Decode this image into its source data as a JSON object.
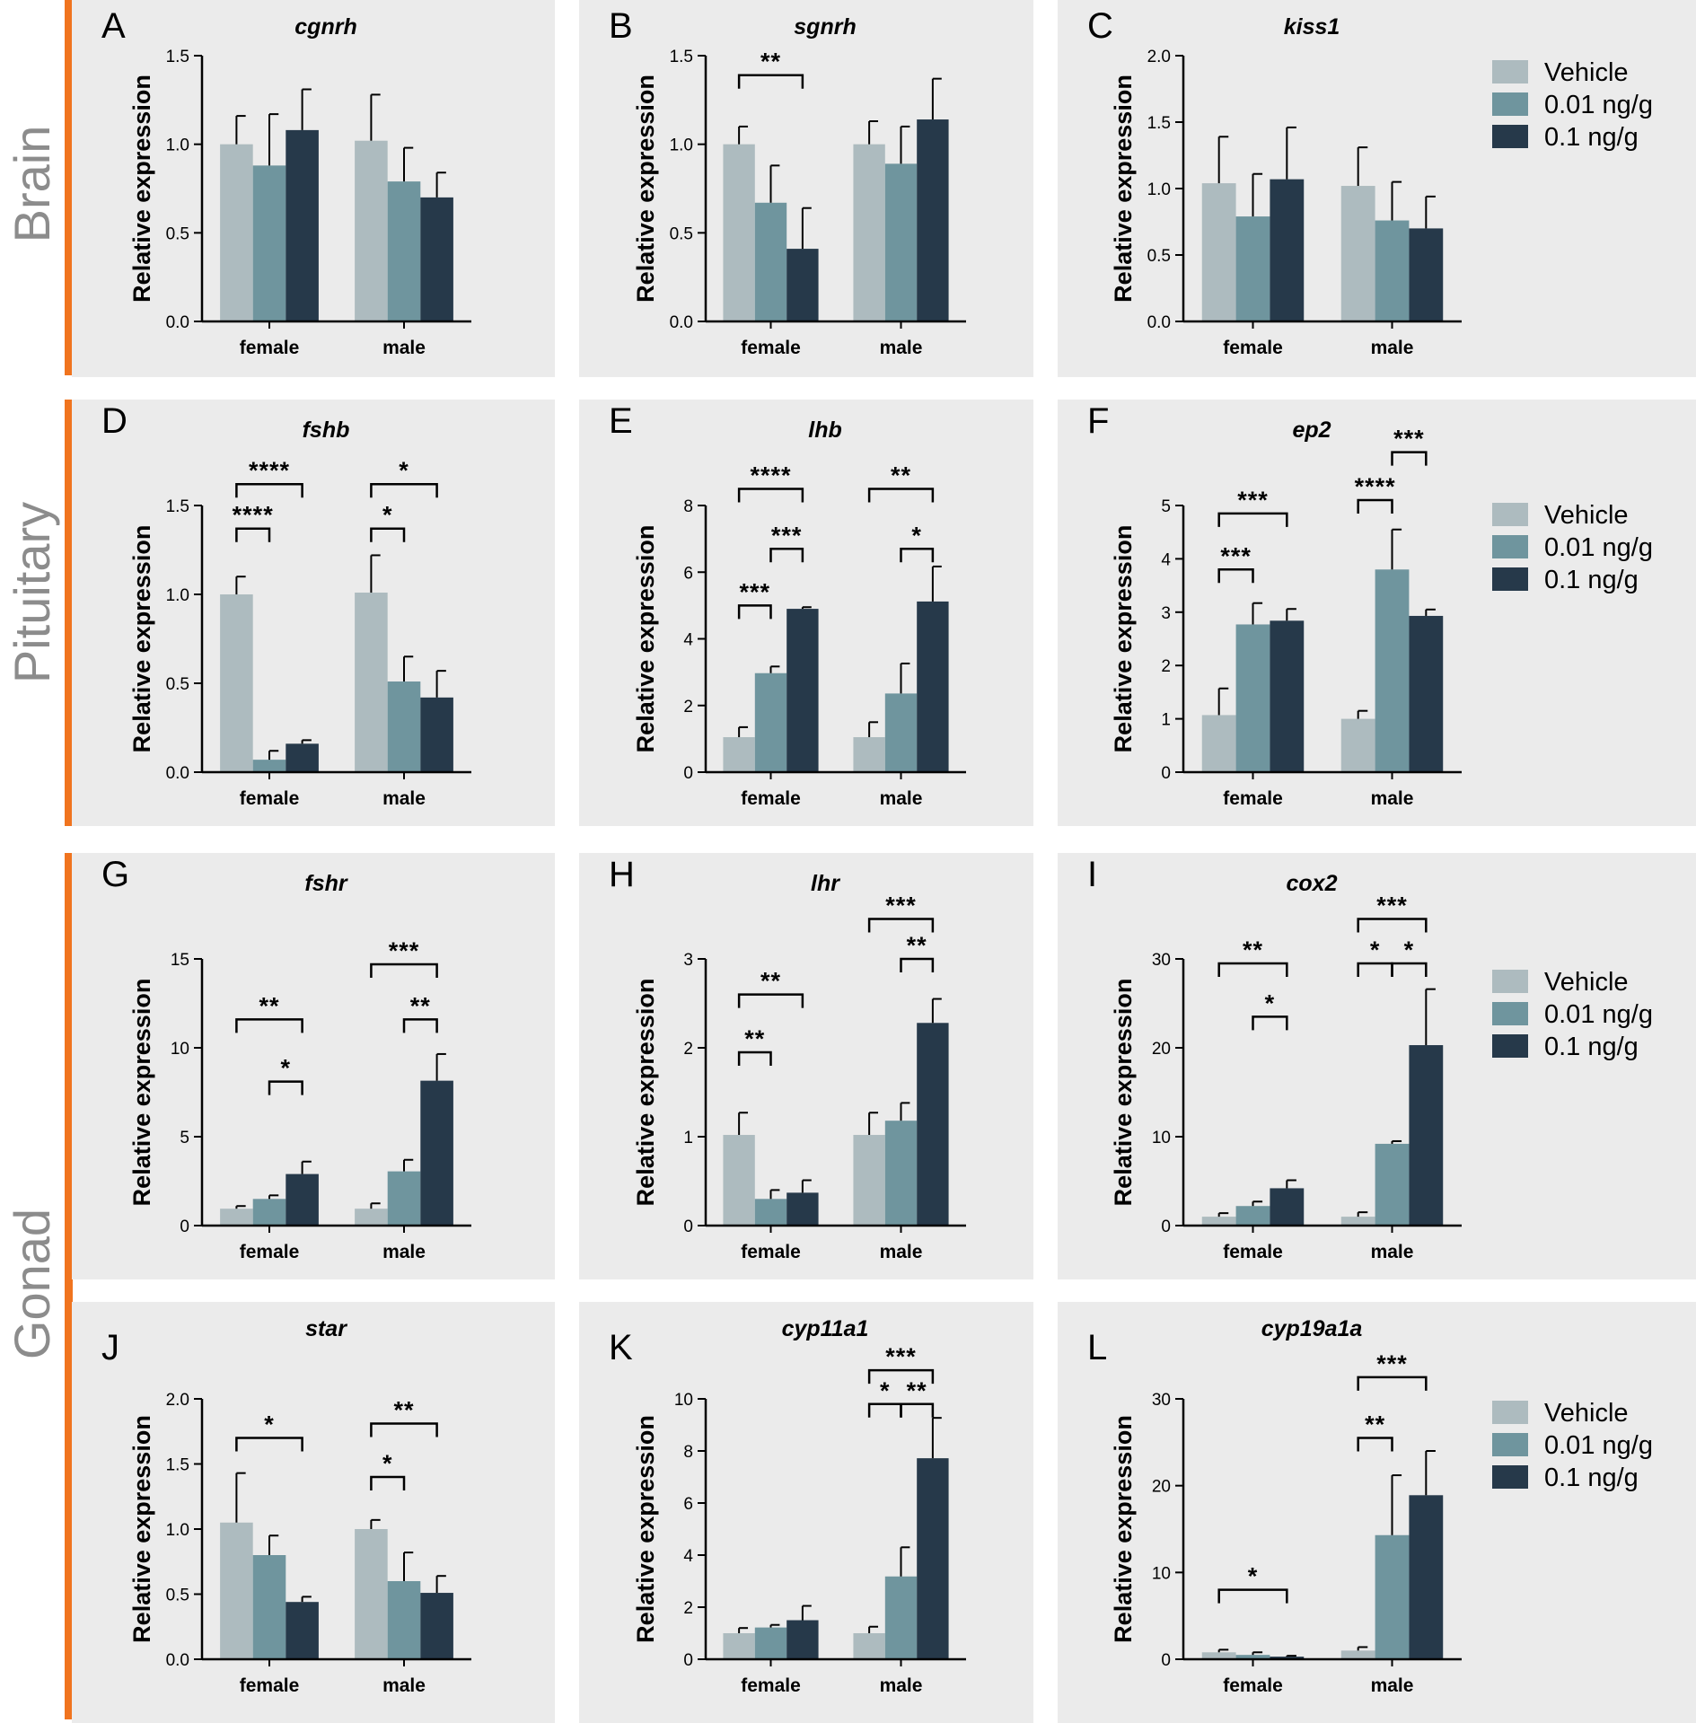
{
  "colors": {
    "vehicle": "#adbbbf",
    "low": "#6f959e",
    "high": "#26394a",
    "accent": "#f0741f",
    "panel": "#ebebeb",
    "row_label": "#8c8c8c"
  },
  "row_labels": [
    "Brain",
    "Pituitary",
    "Gonad"
  ],
  "legend": [
    "Vehicle",
    "0.01 ng/g",
    "0.1 ng/g"
  ],
  "categories": [
    "female",
    "male"
  ],
  "ylabel": "Relative expression",
  "chart_data": [
    {
      "letter": "A",
      "title": "cgnrh",
      "type": "bar",
      "ylim": [
        0,
        1.5
      ],
      "yticks": [
        "0.0",
        "0.5",
        "1.0",
        "1.5"
      ],
      "series": [
        {
          "name": "Vehicle",
          "values": [
            1.0,
            1.02
          ],
          "err": [
            0.16,
            0.26
          ]
        },
        {
          "name": "0.01 ng/g",
          "values": [
            0.88,
            0.79
          ],
          "err": [
            0.29,
            0.19
          ]
        },
        {
          "name": "0.1 ng/g",
          "values": [
            1.08,
            0.7
          ],
          "err": [
            0.23,
            0.14
          ]
        }
      ],
      "sig": []
    },
    {
      "letter": "B",
      "title": "sgnrh",
      "type": "bar",
      "ylim": [
        0,
        1.5
      ],
      "yticks": [
        "0.0",
        "0.5",
        "1.0",
        "1.5"
      ],
      "series": [
        {
          "name": "Vehicle",
          "values": [
            1.0,
            1.0
          ],
          "err": [
            0.1,
            0.13
          ]
        },
        {
          "name": "0.01 ng/g",
          "values": [
            0.67,
            0.89
          ],
          "err": [
            0.21,
            0.21
          ]
        },
        {
          "name": "0.1 ng/g",
          "values": [
            0.41,
            1.14
          ],
          "err": [
            0.23,
            0.23
          ]
        }
      ],
      "sig": [
        {
          "label": "**",
          "cat": 0,
          "from": 0,
          "to": 2,
          "y": 1.39
        }
      ]
    },
    {
      "letter": "C",
      "title": "kiss1",
      "type": "bar",
      "ylim": [
        0,
        2.0
      ],
      "yticks": [
        "0.0",
        "0.5",
        "1.0",
        "1.5",
        "2.0"
      ],
      "series": [
        {
          "name": "Vehicle",
          "values": [
            1.04,
            1.02
          ],
          "err": [
            0.35,
            0.29
          ]
        },
        {
          "name": "0.01 ng/g",
          "values": [
            0.79,
            0.76
          ],
          "err": [
            0.32,
            0.29
          ]
        },
        {
          "name": "0.1 ng/g",
          "values": [
            1.07,
            0.7
          ],
          "err": [
            0.39,
            0.24
          ]
        }
      ],
      "sig": []
    },
    {
      "letter": "D",
      "title": "fshb",
      "type": "bar",
      "ylim": [
        0,
        1.5
      ],
      "yticks": [
        "0.0",
        "0.5",
        "1.0",
        "1.5"
      ],
      "series": [
        {
          "name": "Vehicle",
          "values": [
            1.0,
            1.01
          ],
          "err": [
            0.1,
            0.21
          ]
        },
        {
          "name": "0.01 ng/g",
          "values": [
            0.07,
            0.51
          ],
          "err": [
            0.05,
            0.14
          ]
        },
        {
          "name": "0.1 ng/g",
          "values": [
            0.16,
            0.42
          ],
          "err": [
            0.02,
            0.15
          ]
        }
      ],
      "sig": [
        {
          "label": "****",
          "cat": 0,
          "from": 0,
          "to": 1,
          "y": 1.37
        },
        {
          "label": "****",
          "cat": 0,
          "from": 0,
          "to": 2,
          "y": 1.62
        },
        {
          "label": "*",
          "cat": 1,
          "from": 0,
          "to": 1,
          "y": 1.37
        },
        {
          "label": "*",
          "cat": 1,
          "from": 0,
          "to": 2,
          "y": 1.62
        }
      ]
    },
    {
      "letter": "E",
      "title": "lhb",
      "type": "bar",
      "ylim": [
        0,
        8
      ],
      "yticks": [
        "0",
        "2",
        "4",
        "6",
        "8"
      ],
      "series": [
        {
          "name": "Vehicle",
          "values": [
            1.05,
            1.05
          ],
          "err": [
            0.3,
            0.45
          ]
        },
        {
          "name": "0.01 ng/g",
          "values": [
            2.97,
            2.36
          ],
          "err": [
            0.2,
            0.9
          ]
        },
        {
          "name": "0.1 ng/g",
          "values": [
            4.9,
            5.12
          ],
          "err": [
            0.05,
            1.05
          ]
        }
      ],
      "sig": [
        {
          "label": "***",
          "cat": 0,
          "from": 0,
          "to": 1,
          "y": 5.0
        },
        {
          "label": "***",
          "cat": 0,
          "from": 1,
          "to": 2,
          "y": 6.7
        },
        {
          "label": "****",
          "cat": 0,
          "from": 0,
          "to": 2,
          "y": 8.5
        },
        {
          "label": "*",
          "cat": 1,
          "from": 1,
          "to": 2,
          "y": 6.7
        },
        {
          "label": "**",
          "cat": 1,
          "from": 0,
          "to": 2,
          "y": 8.5
        }
      ]
    },
    {
      "letter": "F",
      "title": "ep2",
      "type": "bar",
      "ylim": [
        0,
        5
      ],
      "yticks": [
        "0",
        "1",
        "2",
        "3",
        "4",
        "5"
      ],
      "series": [
        {
          "name": "Vehicle",
          "values": [
            1.07,
            1.0
          ],
          "err": [
            0.5,
            0.15
          ]
        },
        {
          "name": "0.01 ng/g",
          "values": [
            2.77,
            3.8
          ],
          "err": [
            0.4,
            0.75
          ]
        },
        {
          "name": "0.1 ng/g",
          "values": [
            2.84,
            2.93
          ],
          "err": [
            0.22,
            0.12
          ]
        }
      ],
      "sig": [
        {
          "label": "***",
          "cat": 0,
          "from": 0,
          "to": 1,
          "y": 3.8
        },
        {
          "label": "***",
          "cat": 0,
          "from": 0,
          "to": 2,
          "y": 4.85
        },
        {
          "label": "****",
          "cat": 1,
          "from": 0,
          "to": 1,
          "y": 5.1
        },
        {
          "label": "***",
          "cat": 1,
          "from": 1,
          "to": 2,
          "y": 6.0
        }
      ]
    },
    {
      "letter": "G",
      "title": "fshr",
      "type": "bar",
      "ylim": [
        0,
        15
      ],
      "yticks": [
        "0",
        "5",
        "10",
        "15"
      ],
      "series": [
        {
          "name": "Vehicle",
          "values": [
            0.95,
            0.95
          ],
          "err": [
            0.15,
            0.3
          ]
        },
        {
          "name": "0.01 ng/g",
          "values": [
            1.5,
            3.05
          ],
          "err": [
            0.2,
            0.65
          ]
        },
        {
          "name": "0.1 ng/g",
          "values": [
            2.9,
            8.15
          ],
          "err": [
            0.7,
            1.5
          ]
        }
      ],
      "sig": [
        {
          "label": "*",
          "cat": 0,
          "from": 1,
          "to": 2,
          "y": 8.1
        },
        {
          "label": "**",
          "cat": 0,
          "from": 0,
          "to": 2,
          "y": 11.6
        },
        {
          "label": "**",
          "cat": 1,
          "from": 1,
          "to": 2,
          "y": 11.6
        },
        {
          "label": "***",
          "cat": 1,
          "from": 0,
          "to": 2,
          "y": 14.7
        }
      ]
    },
    {
      "letter": "H",
      "title": "lhr",
      "type": "bar",
      "ylim": [
        0,
        3
      ],
      "yticks": [
        "0",
        "1",
        "2",
        "3"
      ],
      "series": [
        {
          "name": "Vehicle",
          "values": [
            1.02,
            1.02
          ],
          "err": [
            0.25,
            0.25
          ]
        },
        {
          "name": "0.01 ng/g",
          "values": [
            0.3,
            1.18
          ],
          "err": [
            0.1,
            0.2
          ]
        },
        {
          "name": "0.1 ng/g",
          "values": [
            0.37,
            2.28
          ],
          "err": [
            0.14,
            0.27
          ]
        }
      ],
      "sig": [
        {
          "label": "**",
          "cat": 0,
          "from": 0,
          "to": 1,
          "y": 1.95
        },
        {
          "label": "**",
          "cat": 0,
          "from": 0,
          "to": 2,
          "y": 2.6
        },
        {
          "label": "**",
          "cat": 1,
          "from": 1,
          "to": 2,
          "y": 3.0
        },
        {
          "label": "***",
          "cat": 1,
          "from": 0,
          "to": 2,
          "y": 3.45
        }
      ]
    },
    {
      "letter": "I",
      "title": "cox2",
      "type": "bar",
      "ylim": [
        0,
        30
      ],
      "yticks": [
        "0",
        "10",
        "20",
        "30"
      ],
      "series": [
        {
          "name": "Vehicle",
          "values": [
            1.0,
            1.0
          ],
          "err": [
            0.4,
            0.5
          ]
        },
        {
          "name": "0.01 ng/g",
          "values": [
            2.2,
            9.2
          ],
          "err": [
            0.5,
            0.3
          ]
        },
        {
          "name": "0.1 ng/g",
          "values": [
            4.2,
            20.3
          ],
          "err": [
            0.9,
            6.3
          ]
        }
      ],
      "sig": [
        {
          "label": "*",
          "cat": 0,
          "from": 1,
          "to": 2,
          "y": 23.5
        },
        {
          "label": "**",
          "cat": 0,
          "from": 0,
          "to": 2,
          "y": 29.5
        },
        {
          "label": "*",
          "cat": 1,
          "from": 0,
          "to": 1,
          "y": 29.5
        },
        {
          "label": "*",
          "cat": 1,
          "from": 1,
          "to": 2,
          "y": 29.5
        },
        {
          "label": "***",
          "cat": 1,
          "from": 0,
          "to": 2,
          "y": 34.5
        }
      ]
    },
    {
      "letter": "J",
      "title": "star",
      "type": "bar",
      "ylim": [
        0,
        2.0
      ],
      "yticks": [
        "0.0",
        "0.5",
        "1.0",
        "1.5",
        "2.0"
      ],
      "series": [
        {
          "name": "Vehicle",
          "values": [
            1.05,
            1.0
          ],
          "err": [
            0.38,
            0.07
          ]
        },
        {
          "name": "0.01 ng/g",
          "values": [
            0.8,
            0.6
          ],
          "err": [
            0.15,
            0.22
          ]
        },
        {
          "name": "0.1 ng/g",
          "values": [
            0.44,
            0.51
          ],
          "err": [
            0.04,
            0.13
          ]
        }
      ],
      "sig": [
        {
          "label": "*",
          "cat": 0,
          "from": 0,
          "to": 2,
          "y": 1.7
        },
        {
          "label": "*",
          "cat": 1,
          "from": 0,
          "to": 1,
          "y": 1.4
        },
        {
          "label": "**",
          "cat": 1,
          "from": 0,
          "to": 2,
          "y": 1.81
        }
      ]
    },
    {
      "letter": "K",
      "title": "cyp11a1",
      "type": "bar",
      "ylim": [
        0,
        10
      ],
      "yticks": [
        "0",
        "2",
        "4",
        "6",
        "8",
        "10"
      ],
      "series": [
        {
          "name": "Vehicle",
          "values": [
            1.0,
            1.0
          ],
          "err": [
            0.2,
            0.25
          ]
        },
        {
          "name": "0.01 ng/g",
          "values": [
            1.22,
            3.18
          ],
          "err": [
            0.1,
            1.12
          ]
        },
        {
          "name": "0.1 ng/g",
          "values": [
            1.5,
            7.72
          ],
          "err": [
            0.55,
            1.55
          ]
        }
      ],
      "sig": [
        {
          "label": "*",
          "cat": 1,
          "from": 0,
          "to": 1,
          "y": 9.8
        },
        {
          "label": "**",
          "cat": 1,
          "from": 1,
          "to": 2,
          "y": 9.8
        },
        {
          "label": "***",
          "cat": 1,
          "from": 0,
          "to": 2,
          "y": 11.1
        }
      ]
    },
    {
      "letter": "L",
      "title": "cyp19a1a",
      "type": "bar",
      "ylim": [
        0,
        30
      ],
      "yticks": [
        "0",
        "10",
        "20",
        "30"
      ],
      "series": [
        {
          "name": "Vehicle",
          "values": [
            0.8,
            1.0
          ],
          "err": [
            0.3,
            0.4
          ]
        },
        {
          "name": "0.01 ng/g",
          "values": [
            0.5,
            14.3
          ],
          "err": [
            0.3,
            6.9
          ]
        },
        {
          "name": "0.1 ng/g",
          "values": [
            0.3,
            18.9
          ],
          "err": [
            0.1,
            5.1
          ]
        }
      ],
      "sig": [
        {
          "label": "*",
          "cat": 0,
          "from": 0,
          "to": 2,
          "y": 8.0
        },
        {
          "label": "**",
          "cat": 1,
          "from": 0,
          "to": 1,
          "y": 25.5
        },
        {
          "label": "***",
          "cat": 1,
          "from": 0,
          "to": 2,
          "y": 32.5
        }
      ]
    }
  ]
}
